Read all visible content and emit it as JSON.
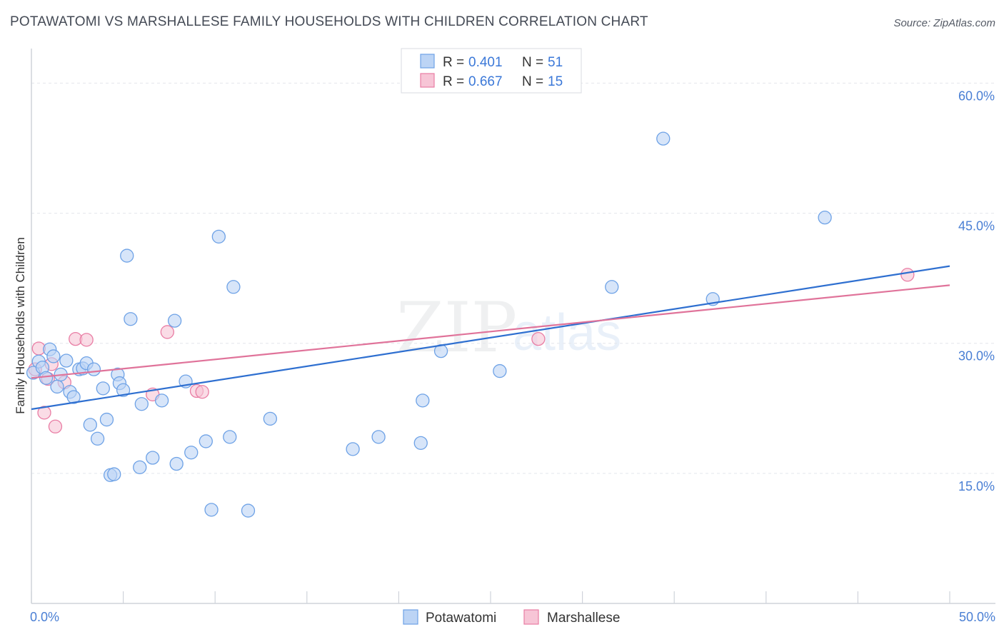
{
  "title": "POTAWATOMI VS MARSHALLESE FAMILY HOUSEHOLDS WITH CHILDREN CORRELATION CHART",
  "source": "Source: ZipAtlas.com",
  "watermark": {
    "zip": "ZIP",
    "atlas": "atlas"
  },
  "colors": {
    "blue": "#6ea2e6",
    "blue_fill": "#bcd4f5",
    "pink": "#e97da4",
    "pink_fill": "#f7c5d6",
    "blue_line": "#2e6fd0",
    "pink_line": "#e0739a",
    "tick": "#4a7fd4"
  },
  "legend": {
    "rows": [
      {
        "r_label": "R =",
        "r_value": "0.401",
        "n_label": "N =",
        "n_value": "51",
        "color": "blue"
      },
      {
        "r_label": "R =",
        "r_value": "0.667",
        "n_label": "N =",
        "n_value": "15",
        "color": "pink"
      }
    ]
  },
  "chart_data": {
    "type": "scatter",
    "title": "POTAWATOMI VS MARSHALLESE FAMILY HOUSEHOLDS WITH CHILDREN CORRELATION CHART",
    "xlabel": "",
    "ylabel": "Family Households with Children",
    "xlim": [
      0,
      50
    ],
    "ylim": [
      0,
      63
    ],
    "x_tick_labels": [
      "0.0%",
      "50.0%"
    ],
    "y_ticks": [
      15,
      30,
      45,
      60
    ],
    "y_tick_labels": [
      "15.0%",
      "30.0%",
      "45.0%",
      "60.0%"
    ],
    "series": [
      {
        "name": "Potawatomi",
        "r": 0.401,
        "n": 51,
        "trend": {
          "x": [
            0,
            50
          ],
          "y": [
            22.4,
            38.9
          ]
        },
        "points": [
          [
            0.1,
            26.6
          ],
          [
            0.4,
            27.9
          ],
          [
            0.6,
            27.2
          ],
          [
            0.8,
            26.0
          ],
          [
            1.0,
            29.3
          ],
          [
            1.2,
            28.5
          ],
          [
            1.4,
            25.0
          ],
          [
            1.6,
            26.4
          ],
          [
            1.9,
            28.0
          ],
          [
            2.1,
            24.4
          ],
          [
            2.3,
            23.8
          ],
          [
            2.6,
            27.0
          ],
          [
            2.8,
            27.1
          ],
          [
            3.0,
            27.7
          ],
          [
            3.2,
            20.6
          ],
          [
            3.4,
            27.0
          ],
          [
            3.6,
            19.0
          ],
          [
            3.9,
            24.8
          ],
          [
            4.1,
            21.2
          ],
          [
            4.3,
            14.8
          ],
          [
            4.5,
            14.9
          ],
          [
            4.7,
            26.4
          ],
          [
            4.8,
            25.4
          ],
          [
            5.0,
            24.6
          ],
          [
            5.2,
            40.1
          ],
          [
            5.4,
            32.8
          ],
          [
            5.9,
            15.7
          ],
          [
            6.0,
            23.0
          ],
          [
            6.6,
            16.8
          ],
          [
            7.1,
            23.4
          ],
          [
            7.8,
            32.6
          ],
          [
            7.9,
            16.1
          ],
          [
            8.4,
            25.6
          ],
          [
            8.7,
            17.4
          ],
          [
            9.5,
            18.7
          ],
          [
            9.8,
            10.8
          ],
          [
            10.2,
            42.3
          ],
          [
            10.8,
            19.2
          ],
          [
            11.0,
            36.5
          ],
          [
            11.8,
            10.7
          ],
          [
            13.0,
            21.3
          ],
          [
            17.5,
            17.8
          ],
          [
            18.9,
            19.2
          ],
          [
            21.3,
            23.4
          ],
          [
            21.2,
            18.5
          ],
          [
            22.3,
            29.1
          ],
          [
            25.5,
            26.8
          ],
          [
            31.6,
            36.5
          ],
          [
            34.4,
            53.6
          ],
          [
            37.1,
            35.1
          ],
          [
            43.2,
            44.5
          ]
        ]
      },
      {
        "name": "Marshallese",
        "r": 0.667,
        "n": 15,
        "trend": {
          "x": [
            0,
            50
          ],
          "y": [
            26.0,
            36.7
          ]
        },
        "points": [
          [
            0.2,
            27.0
          ],
          [
            0.4,
            29.4
          ],
          [
            0.7,
            22.0
          ],
          [
            0.9,
            25.9
          ],
          [
            1.1,
            27.6
          ],
          [
            1.3,
            20.4
          ],
          [
            1.8,
            25.5
          ],
          [
            2.4,
            30.5
          ],
          [
            3.0,
            30.4
          ],
          [
            6.6,
            24.1
          ],
          [
            7.4,
            31.3
          ],
          [
            9.0,
            24.5
          ],
          [
            9.3,
            24.4
          ],
          [
            27.6,
            30.5
          ],
          [
            47.7,
            37.9
          ]
        ]
      }
    ],
    "legend_position": "top-center"
  },
  "bottom_legend": [
    {
      "label": "Potawatomi",
      "color": "blue"
    },
    {
      "label": "Marshallese",
      "color": "pink"
    }
  ]
}
